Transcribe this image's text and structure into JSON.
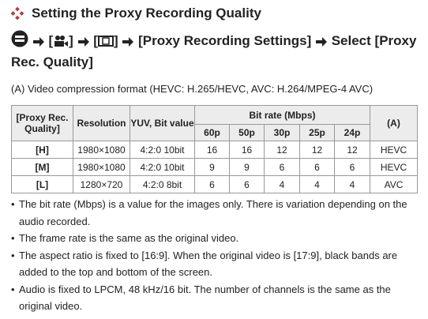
{
  "title": "Setting the Proxy Recording Quality",
  "menu_path": [
    "[",
    "]",
    "[",
    "]",
    "[Proxy Recording Settings]",
    "Select",
    "[Proxy Rec. Quality]"
  ],
  "note": "(A) Video compression format (HEVC: H.265/HEVC, AVC: H.264/MPEG-4 AVC)",
  "table": {
    "header": [
      "[Proxy Rec. Quality]",
      "Resolution",
      "YUV, Bit value",
      "Bit rate (Mbps)",
      "(A)"
    ],
    "subheader": [
      "60p",
      "50p",
      "30p",
      "25p",
      "24p"
    ],
    "rows": [
      [
        "[H]",
        "1980×1080",
        "4:2:0 10bit",
        "16",
        "16",
        "12",
        "12",
        "12",
        "HEVC"
      ],
      [
        "[M]",
        "1980×1080",
        "4:2:0 10bit",
        "9",
        "9",
        "6",
        "6",
        "6",
        "HEVC"
      ],
      [
        "[L]",
        "1280×720",
        "4:2:0 8bit",
        "6",
        "6",
        "4",
        "4",
        "4",
        "AVC"
      ]
    ]
  },
  "bullets": [
    "The bit rate (Mbps) is a value for the images only. There is variation depending on the audio recorded.",
    "The frame rate is the same as the original video.",
    "The aspect ratio is fixed to [16:9]. When the original video is [17:9], black bands are added to the top and bottom of the screen.",
    "Audio is fixed to LPCM, 48 kHz/16 bit. The number of channels is the same as the original video."
  ]
}
